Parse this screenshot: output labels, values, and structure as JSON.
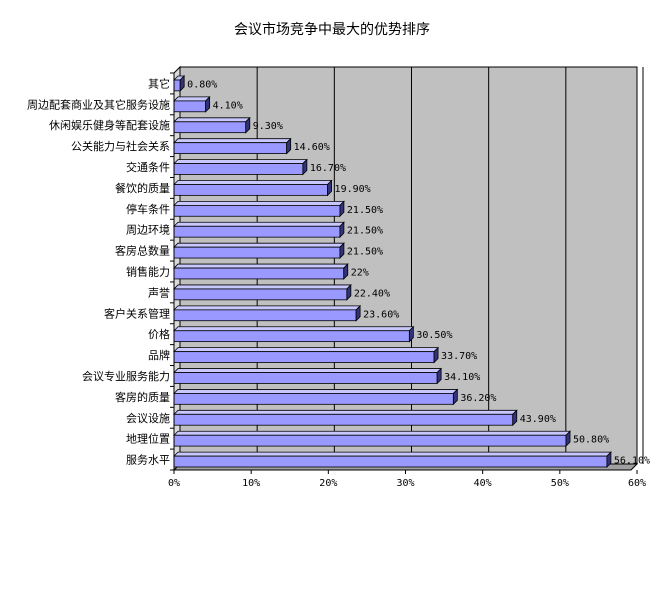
{
  "chart_data": {
    "type": "bar",
    "orientation": "horizontal",
    "title": "会议市场竞争中最大的优势排序",
    "xlabel": "",
    "ylabel": "",
    "xlim": [
      0,
      60
    ],
    "grid": true,
    "legend": "none",
    "categories": [
      "其它",
      "周边配套商业及其它服务设施",
      "休闲娱乐健身等配套设施",
      "公关能力与社会关系",
      "交通条件",
      "餐饮的质量",
      "停车条件",
      "周边环境",
      "客房总数量",
      "销售能力",
      "声誉",
      "客户关系管理",
      "价格",
      "品牌",
      "会议专业服务能力",
      "客房的质量",
      "会议设施",
      "地理位置",
      "服务水平"
    ],
    "values": [
      0.8,
      4.1,
      9.3,
      14.6,
      16.7,
      19.9,
      21.5,
      21.5,
      21.5,
      22,
      22.4,
      23.6,
      30.5,
      33.7,
      34.1,
      36.2,
      43.9,
      50.8,
      56.1
    ],
    "data_labels": [
      "0.80%",
      "4.10%",
      "9.30%",
      "14.60%",
      "16.70%",
      "19.90%",
      "21.50%",
      "21.50%",
      "21.50%",
      "22%",
      "22.40%",
      "23.60%",
      "30.50%",
      "33.70%",
      "34.10%",
      "36.20%",
      "43.90%",
      "50.80%",
      "56.10%"
    ],
    "tick_labels": [
      "0%",
      "10%",
      "20%",
      "30%",
      "40%",
      "50%",
      "60%"
    ],
    "colors": {
      "bar": "#9999ff",
      "bar_top": "#c8c8ff",
      "bar_side": "#33337a",
      "plot_bg": "#c0c0c0",
      "wall": "#808080"
    }
  }
}
